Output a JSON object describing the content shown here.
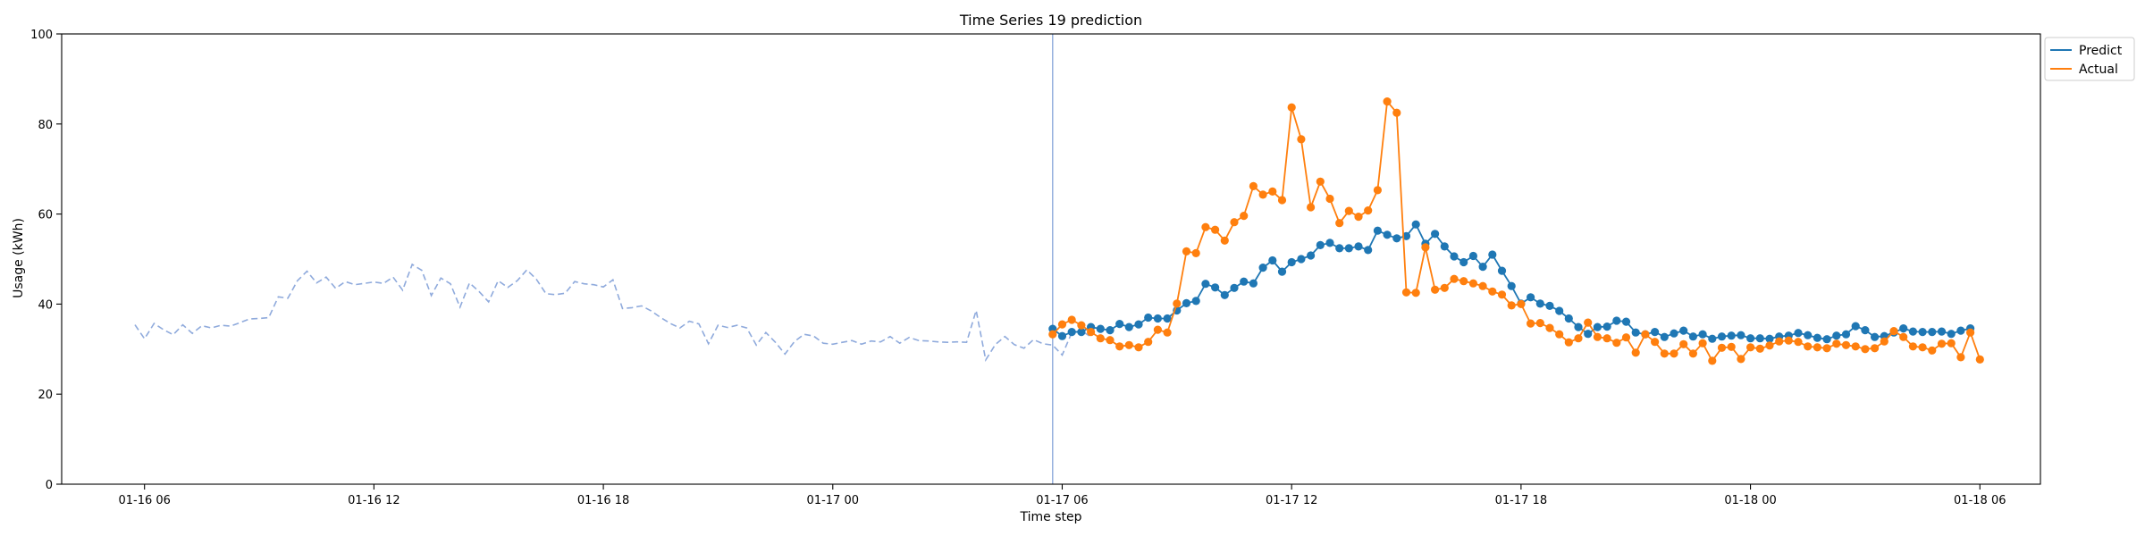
{
  "chart_data": {
    "type": "line",
    "title": "Time Series 19 prediction",
    "xlabel": "Time step",
    "ylabel": "Usage (kWh)",
    "ylim": [
      0,
      100
    ],
    "xlim": [
      "2024-01-16T03:50",
      "2024-01-18T07:35"
    ],
    "xticks": [
      {
        "t": "2024-01-16T06:00",
        "label": "01-16 06"
      },
      {
        "t": "2024-01-16T12:00",
        "label": "01-16 12"
      },
      {
        "t": "2024-01-16T18:00",
        "label": "01-16 18"
      },
      {
        "t": "2024-01-17T00:00",
        "label": "01-17 00"
      },
      {
        "t": "2024-01-17T06:00",
        "label": "01-17 06"
      },
      {
        "t": "2024-01-17T12:00",
        "label": "01-17 12"
      },
      {
        "t": "2024-01-17T18:00",
        "label": "01-17 18"
      },
      {
        "t": "2024-01-18T00:00",
        "label": "01-18 00"
      },
      {
        "t": "2024-01-18T06:00",
        "label": "01-18 06"
      }
    ],
    "yticks": [
      0,
      20,
      40,
      60,
      80,
      100
    ],
    "grid": false,
    "legend": "outside-top-right",
    "split_time": "2024-01-17T05:45",
    "history": {
      "start": "2024-01-16T05:45",
      "step_minutes": 15,
      "color": "#8faadc",
      "values": [
        35.4,
        32.3,
        35.7,
        34.3,
        33.2,
        35.4,
        33.5,
        35.2,
        34.7,
        35.3,
        35.1,
        35.9,
        36.7,
        36.8,
        37.0,
        41.6,
        41.3,
        45.2,
        47.3,
        44.7,
        46.0,
        43.5,
        45.0,
        44.3,
        44.6,
        44.9,
        44.6,
        46.0,
        43.1,
        48.8,
        47.5,
        41.9,
        45.8,
        44.5,
        39.3,
        44.7,
        42.8,
        40.5,
        45.2,
        43.7,
        45.2,
        47.6,
        45.5,
        42.3,
        42.1,
        42.4,
        45.0,
        44.5,
        44.3,
        43.8,
        45.4,
        39.0,
        39.2,
        39.6,
        38.5,
        37.0,
        35.7,
        34.7,
        36.2,
        35.6,
        31.2,
        35.3,
        34.8,
        35.3,
        34.7,
        30.9,
        33.7,
        31.5,
        28.9,
        31.7,
        33.3,
        32.9,
        31.3,
        31.1,
        31.5,
        31.9,
        31.1,
        31.8,
        31.6,
        32.8,
        31.3,
        32.6,
        31.9,
        31.8,
        31.6,
        31.5,
        31.6,
        31.5,
        38.6,
        27.6,
        31.0,
        32.8,
        31.0,
        30.2,
        32.1,
        31.2,
        30.9,
        28.7,
        33.7,
        34.1,
        32.7
      ]
    },
    "series": [
      {
        "name": "Predict",
        "color": "#1f77b4",
        "start": "2024-01-17T05:45",
        "step_minutes": 15,
        "values": [
          34.5,
          32.9,
          33.8,
          33.8,
          34.9,
          34.5,
          34.2,
          35.6,
          34.9,
          35.5,
          37.0,
          36.8,
          36.8,
          38.6,
          40.2,
          40.7,
          44.5,
          43.7,
          42.0,
          43.6,
          45.0,
          44.6,
          48.1,
          49.7,
          47.2,
          49.3,
          50.0,
          50.8,
          53.1,
          53.6,
          52.4,
          52.4,
          52.8,
          52.0,
          56.3,
          55.4,
          54.6,
          55.1,
          57.7,
          53.4,
          55.6,
          52.8,
          50.6,
          49.3,
          50.7,
          48.3,
          51.0,
          47.4,
          44.0,
          40.1,
          41.5,
          40.1,
          39.6,
          38.5,
          36.8,
          34.9,
          33.4,
          34.9,
          35.0,
          36.3,
          36.1,
          33.7,
          33.3,
          33.8,
          32.7,
          33.5,
          34.1,
          32.8,
          33.3,
          32.3,
          32.8,
          33.0,
          33.1,
          32.4,
          32.4,
          32.3,
          32.8,
          33.0,
          33.6,
          33.1,
          32.5,
          32.2,
          33.0,
          33.3,
          35.1,
          34.2,
          32.7,
          32.9,
          33.7,
          34.6,
          33.9,
          33.8,
          33.8,
          33.9,
          33.4,
          34.1,
          34.6
        ]
      },
      {
        "name": "Actual",
        "color": "#ff7f0e",
        "start": "2024-01-17T05:45",
        "step_minutes": 15,
        "values": [
          33.3,
          35.5,
          36.5,
          35.3,
          33.8,
          32.4,
          32.0,
          30.6,
          30.9,
          30.4,
          31.6,
          34.3,
          33.7,
          40.1,
          51.7,
          51.3,
          57.1,
          56.5,
          54.1,
          58.2,
          59.6,
          66.2,
          64.3,
          65.0,
          63.1,
          83.7,
          76.6,
          61.5,
          67.2,
          63.4,
          58.0,
          60.7,
          59.4,
          60.8,
          65.3,
          85.0,
          82.5,
          42.6,
          42.5,
          52.6,
          43.2,
          43.6,
          45.6,
          45.1,
          44.6,
          44.0,
          42.8,
          42.1,
          39.7,
          40.0,
          35.7,
          35.8,
          34.7,
          33.3,
          31.5,
          32.4,
          35.9,
          32.7,
          32.4,
          31.4,
          32.6,
          29.2,
          33.3,
          31.6,
          29.0,
          29.0,
          31.1,
          29.0,
          31.3,
          27.4,
          30.3,
          30.5,
          27.8,
          30.4,
          30.1,
          30.8,
          31.7,
          31.9,
          31.6,
          30.6,
          30.4,
          30.2,
          31.2,
          30.9,
          30.6,
          30.0,
          30.2,
          31.7,
          34.0,
          32.7,
          30.6,
          30.4,
          29.7,
          31.2,
          31.3,
          28.2,
          33.7,
          27.7
        ]
      }
    ]
  }
}
